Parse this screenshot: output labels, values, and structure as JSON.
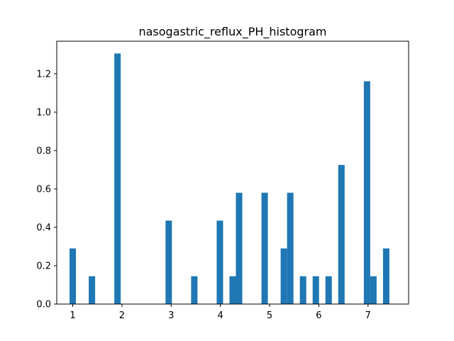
{
  "chart_data": {
    "type": "bar",
    "title": "nasogastric_reflux_PH_histogram",
    "xlabel": "",
    "ylabel": "",
    "xlim": [
      0.675,
      7.825
    ],
    "ylim": [
      0.0,
      1.37
    ],
    "bin_width": 0.13,
    "grid": false,
    "legend": "none",
    "bar_color": "#1f77b4",
    "x_ticks": [
      {
        "value": 1,
        "label": "1"
      },
      {
        "value": 2,
        "label": "2"
      },
      {
        "value": 3,
        "label": "3"
      },
      {
        "value": 4,
        "label": "4"
      },
      {
        "value": 5,
        "label": "5"
      },
      {
        "value": 6,
        "label": "6"
      },
      {
        "value": 7,
        "label": "7"
      }
    ],
    "y_ticks": [
      {
        "value": 0.0,
        "label": "0.0"
      },
      {
        "value": 0.2,
        "label": "0.2"
      },
      {
        "value": 0.4,
        "label": "0.4"
      },
      {
        "value": 0.6,
        "label": "0.6"
      },
      {
        "value": 0.8,
        "label": "0.8"
      },
      {
        "value": 1.0,
        "label": "1.0"
      },
      {
        "value": 1.2,
        "label": "1.2"
      }
    ],
    "bins": [
      {
        "x": 1.0,
        "value": 0.29
      },
      {
        "x": 1.39,
        "value": 0.145
      },
      {
        "x": 1.91,
        "value": 1.306
      },
      {
        "x": 2.95,
        "value": 0.435
      },
      {
        "x": 3.47,
        "value": 0.145
      },
      {
        "x": 3.99,
        "value": 0.435
      },
      {
        "x": 4.25,
        "value": 0.145
      },
      {
        "x": 4.38,
        "value": 0.58
      },
      {
        "x": 4.9,
        "value": 0.58
      },
      {
        "x": 5.29,
        "value": 0.29
      },
      {
        "x": 5.42,
        "value": 0.58
      },
      {
        "x": 5.68,
        "value": 0.145
      },
      {
        "x": 5.94,
        "value": 0.145
      },
      {
        "x": 6.2,
        "value": 0.145
      },
      {
        "x": 6.46,
        "value": 0.725
      },
      {
        "x": 6.98,
        "value": 1.161
      },
      {
        "x": 7.11,
        "value": 0.145
      },
      {
        "x": 7.37,
        "value": 0.29
      }
    ]
  }
}
